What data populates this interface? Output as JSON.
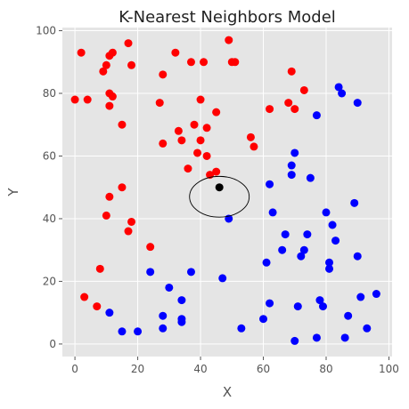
{
  "chart_data": {
    "type": "scatter",
    "title": "K-Nearest Neighbors Model",
    "xlabel": "X",
    "ylabel": "Y",
    "xlim": [
      -4,
      101
    ],
    "ylim": [
      -4,
      101
    ],
    "xticks": [
      0,
      20,
      40,
      60,
      80,
      100
    ],
    "yticks": [
      0,
      20,
      40,
      60,
      80,
      100
    ],
    "grid": true,
    "background": "#e5e5e5",
    "grid_color": "#ffffff",
    "series": [
      {
        "color": "#ff0000",
        "points": [
          [
            0,
            78
          ],
          [
            2,
            93
          ],
          [
            4,
            78
          ],
          [
            3,
            15
          ],
          [
            7,
            12
          ],
          [
            8,
            24
          ],
          [
            9,
            87
          ],
          [
            10,
            89
          ],
          [
            10,
            41
          ],
          [
            11,
            92
          ],
          [
            11,
            80
          ],
          [
            11,
            76
          ],
          [
            11,
            47
          ],
          [
            12,
            93
          ],
          [
            12,
            79
          ],
          [
            15,
            70
          ],
          [
            15,
            50
          ],
          [
            17,
            96
          ],
          [
            18,
            89
          ],
          [
            18,
            39
          ],
          [
            17,
            36
          ],
          [
            24,
            31
          ],
          [
            27,
            77
          ],
          [
            28,
            86
          ],
          [
            28,
            64
          ],
          [
            32,
            93
          ],
          [
            33,
            68
          ],
          [
            34,
            65
          ],
          [
            36,
            56
          ],
          [
            37,
            90
          ],
          [
            38,
            70
          ],
          [
            39,
            61
          ],
          [
            40,
            78
          ],
          [
            40,
            65
          ],
          [
            41,
            90
          ],
          [
            42,
            69
          ],
          [
            42,
            60
          ],
          [
            43,
            54
          ],
          [
            45,
            74
          ],
          [
            45,
            55
          ],
          [
            49,
            97
          ],
          [
            50,
            90
          ],
          [
            51,
            90
          ],
          [
            62,
            75
          ],
          [
            56,
            66
          ],
          [
            57,
            63
          ],
          [
            68,
            77
          ],
          [
            69,
            87
          ],
          [
            70,
            75
          ],
          [
            73,
            81
          ]
        ]
      },
      {
        "color": "#0000ff",
        "points": [
          [
            11,
            10
          ],
          [
            15,
            4
          ],
          [
            20,
            4
          ],
          [
            24,
            23
          ],
          [
            28,
            9
          ],
          [
            28,
            5
          ],
          [
            30,
            18
          ],
          [
            34,
            14
          ],
          [
            34,
            8
          ],
          [
            34,
            7
          ],
          [
            37,
            23
          ],
          [
            47,
            21
          ],
          [
            49,
            40
          ],
          [
            53,
            5
          ],
          [
            60,
            8
          ],
          [
            61,
            26
          ],
          [
            62,
            13
          ],
          [
            62,
            51
          ],
          [
            63,
            42
          ],
          [
            66,
            30
          ],
          [
            67,
            35
          ],
          [
            69,
            54
          ],
          [
            69,
            57
          ],
          [
            70,
            61
          ],
          [
            70,
            1
          ],
          [
            71,
            12
          ],
          [
            72,
            28
          ],
          [
            73,
            30
          ],
          [
            74,
            35
          ],
          [
            75,
            53
          ],
          [
            77,
            2
          ],
          [
            77,
            73
          ],
          [
            78,
            14
          ],
          [
            79,
            12
          ],
          [
            80,
            42
          ],
          [
            81,
            26
          ],
          [
            81,
            24
          ],
          [
            82,
            38
          ],
          [
            83,
            33
          ],
          [
            84,
            82
          ],
          [
            85,
            80
          ],
          [
            86,
            2
          ],
          [
            87,
            9
          ],
          [
            89,
            45
          ],
          [
            90,
            77
          ],
          [
            90,
            28
          ],
          [
            91,
            15
          ],
          [
            93,
            5
          ],
          [
            96,
            16
          ]
        ]
      },
      {
        "color": "#000000",
        "points": [
          [
            46,
            50
          ]
        ]
      }
    ],
    "annotations": [
      {
        "shape": "circle",
        "center": [
          46,
          47
        ],
        "radius_x": 9.5,
        "radius_y": 6.5,
        "edge_color": "#000000"
      }
    ]
  }
}
